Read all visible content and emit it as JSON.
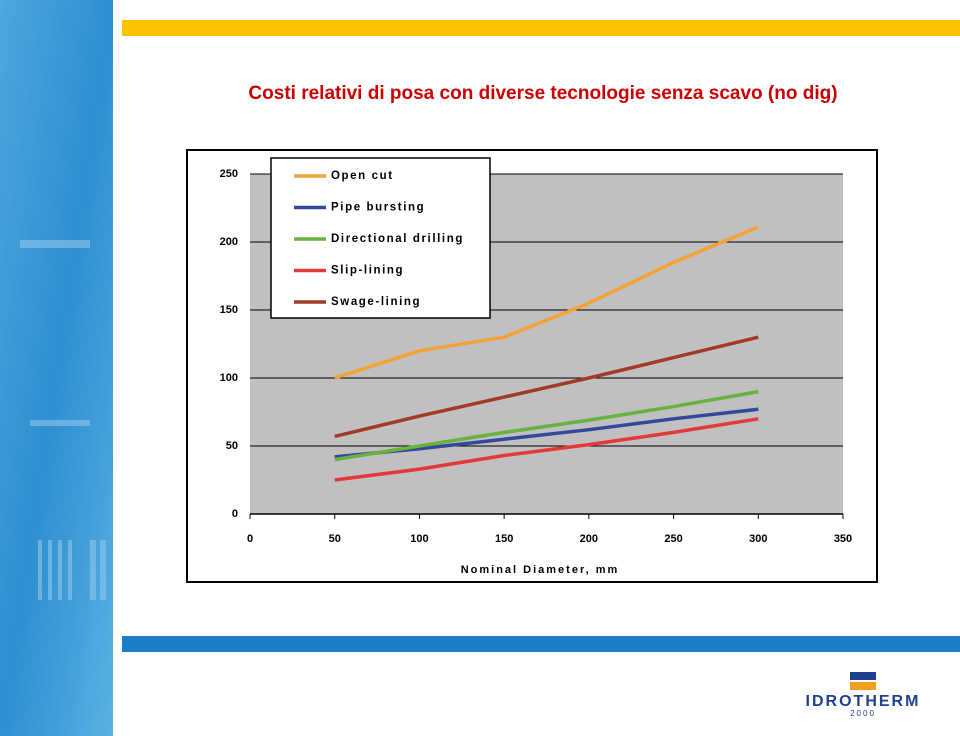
{
  "chart_data": {
    "type": "line",
    "title": "Costi relativi di posa con diverse tecnologie senza scavo (no dig)",
    "x_label": "Nominal Diameter, mm",
    "x": [
      50,
      100,
      150,
      200,
      250,
      300
    ],
    "series": [
      {
        "name": "Open cut",
        "color": "#f4a233",
        "values": [
          100,
          120,
          130,
          155,
          185,
          211
        ]
      },
      {
        "name": "Pipe bursting",
        "color": "#33479b",
        "values": [
          42,
          48,
          55,
          62,
          70,
          77
        ]
      },
      {
        "name": "Directional drilling",
        "color": "#6ab23f",
        "values": [
          40,
          50,
          60,
          69,
          79,
          90
        ]
      },
      {
        "name": "Slip-lining",
        "color": "#e23a36",
        "values": [
          25,
          33,
          43,
          51,
          60,
          70
        ]
      },
      {
        "name": "Swage-lining",
        "color": "#a23a28",
        "values": [
          57,
          72,
          86,
          100,
          115,
          130
        ]
      }
    ],
    "xlim": [
      0,
      350
    ],
    "xticks": [
      0,
      50,
      100,
      150,
      200,
      250,
      300,
      350
    ],
    "ylim": [
      0,
      250
    ],
    "yticks": [
      0,
      50,
      100,
      150,
      200,
      250
    ],
    "grid": true,
    "legend": "top-left"
  },
  "logo": {
    "name": "IDROTHERM",
    "year": "2000"
  }
}
